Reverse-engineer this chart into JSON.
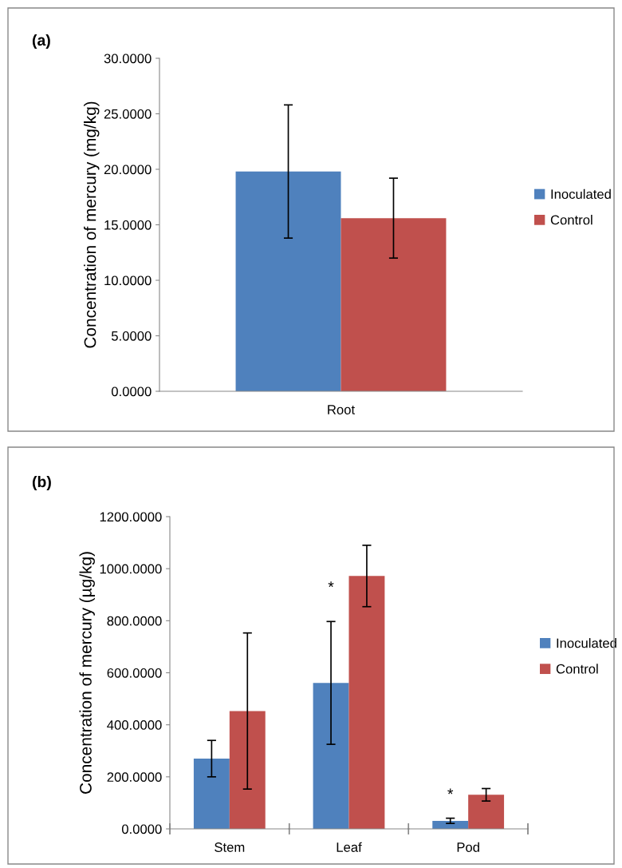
{
  "chart_data": [
    {
      "type": "bar",
      "title": "(a)",
      "ylabel": "Concentration of mercury (mg/kg)",
      "categories": [
        "Root"
      ],
      "ylim": [
        0,
        30
      ],
      "yticks": [
        {
          "value": 0,
          "label": "0.0000"
        },
        {
          "value": 5,
          "label": "5.0000"
        },
        {
          "value": 10,
          "label": "10.0000"
        },
        {
          "value": 15,
          "label": "15.0000"
        },
        {
          "value": 20,
          "label": "20.0000"
        },
        {
          "value": 25,
          "label": "25.0000"
        },
        {
          "value": 30,
          "label": "30.0000"
        }
      ],
      "legend": "right",
      "grid": false,
      "series": [
        {
          "name": "Inoculated",
          "color": "#4f81bd",
          "values": [
            19.8
          ],
          "errors": [
            6.0
          ]
        },
        {
          "name": "Control",
          "color": "#c0504d",
          "values": [
            15.6
          ],
          "errors": [
            3.6
          ]
        }
      ]
    },
    {
      "type": "bar",
      "title": "(b)",
      "ylabel": "Concentration of mercury (µg/kg)",
      "categories": [
        "Stem",
        "Leaf",
        "Pod"
      ],
      "ylim": [
        0,
        1200
      ],
      "yticks": [
        {
          "value": 0,
          "label": "0.0000"
        },
        {
          "value": 200,
          "label": "200.0000"
        },
        {
          "value": 400,
          "label": "400.0000"
        },
        {
          "value": 600,
          "label": "600.0000"
        },
        {
          "value": 800,
          "label": "800.0000"
        },
        {
          "value": 1000,
          "label": "1000.0000"
        },
        {
          "value": 1200,
          "label": "1200.0000"
        }
      ],
      "legend": "right",
      "grid": false,
      "annotations": [
        {
          "text": "*",
          "x": "Leaf",
          "y": 925
        },
        {
          "text": "*",
          "x": "Pod",
          "y": 129
        }
      ],
      "series": [
        {
          "name": "Inoculated",
          "color": "#4f81bd",
          "values": [
            270,
            561,
            31
          ],
          "errors": [
            70,
            236,
            10
          ]
        },
        {
          "name": "Control",
          "color": "#c0504d",
          "values": [
            453,
            972,
            131
          ],
          "errors": [
            300,
            118,
            24
          ]
        }
      ]
    }
  ]
}
